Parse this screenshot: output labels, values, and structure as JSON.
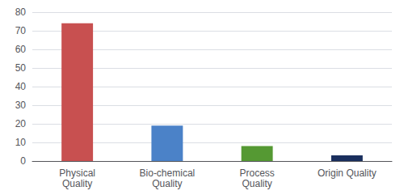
{
  "chart_data": {
    "type": "bar",
    "categories": [
      "Physical\nQuality",
      "Bio-chemical\nQuality",
      "Process\nQuality",
      "Origin Quality"
    ],
    "values": [
      74,
      19,
      8,
      3
    ],
    "colors": [
      "#c85050",
      "#4b82c8",
      "#559933",
      "#1a2f5e"
    ],
    "ylim": [
      0,
      80
    ],
    "yticks": [
      0,
      10,
      20,
      30,
      40,
      50,
      60,
      70,
      80
    ],
    "grid": true
  }
}
